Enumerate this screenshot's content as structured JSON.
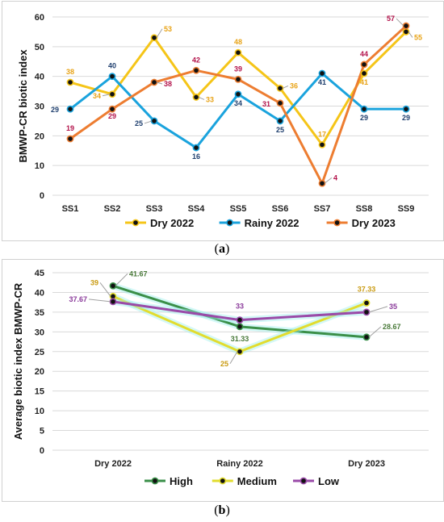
{
  "captions": {
    "a_letter": "a",
    "b_letter": "b"
  },
  "chart_data": [
    {
      "type": "line",
      "ylabel": "BMWP-CR biotic index",
      "xlabel": "",
      "ylim": [
        0,
        60
      ],
      "yticks": [
        0,
        10,
        20,
        30,
        40,
        50,
        60
      ],
      "categories": [
        "SS1",
        "SS2",
        "SS3",
        "SS4",
        "SS5",
        "SS6",
        "SS7",
        "SS8",
        "SS9"
      ],
      "grid": "horizontal",
      "legend": "bottom",
      "series": [
        {
          "name": "Dry 2022",
          "color": "#f5c518",
          "label_color": "#e8a317",
          "values": [
            38,
            34,
            53,
            33,
            48,
            36,
            17,
            41,
            55
          ]
        },
        {
          "name": "Rainy 2022",
          "color": "#1aa3dd",
          "label_color": "#1f3f6e",
          "values": [
            29,
            40,
            25,
            16,
            34,
            25,
            41,
            29,
            29
          ]
        },
        {
          "name": "Dry 2023",
          "color": "#ed7d31",
          "label_color": "#b3124a",
          "values": [
            19,
            29,
            38,
            42,
            39,
            31,
            4,
            44,
            57
          ]
        }
      ]
    },
    {
      "type": "line",
      "ylabel": "Average biotic index BMWP-CR",
      "xlabel": "",
      "ylim": [
        0,
        45
      ],
      "yticks": [
        0,
        5,
        10,
        15,
        20,
        25,
        30,
        35,
        40,
        45
      ],
      "categories": [
        "Dry 2022",
        "Rainy 2022",
        "Dry 2023"
      ],
      "grid": "horizontal",
      "legend": "bottom",
      "series": [
        {
          "name": "High",
          "color": "#3a8f48",
          "label_color": "#4a7a3a",
          "values": [
            41.67,
            31.33,
            28.67
          ]
        },
        {
          "name": "Medium",
          "color": "#e2dc2e",
          "label_color": "#c99a10",
          "values": [
            39,
            25,
            37.33
          ]
        },
        {
          "name": "Low",
          "color": "#9a4aa8",
          "label_color": "#8a3a9a",
          "values": [
            37.67,
            33,
            35
          ]
        }
      ]
    }
  ]
}
